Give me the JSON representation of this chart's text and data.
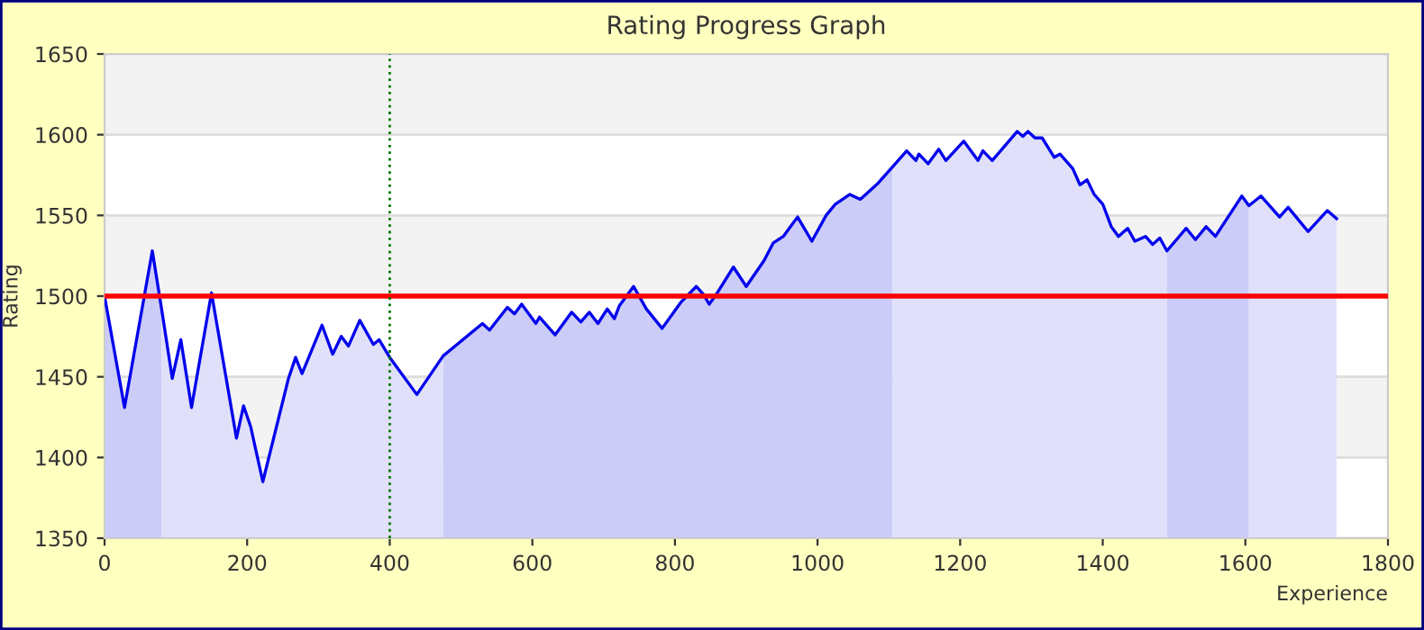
{
  "chart_data": {
    "type": "line",
    "title": "Rating Progress Graph",
    "xlabel": "Experience",
    "ylabel": "Rating",
    "xlim": [
      0,
      1800
    ],
    "xticks": [
      0,
      200,
      400,
      600,
      800,
      1000,
      1200,
      1400,
      1600,
      1800
    ],
    "ylim": [
      1350,
      1650
    ],
    "yticks": [
      1350,
      1400,
      1450,
      1500,
      1550,
      1600,
      1650
    ],
    "grid": "y",
    "legend": false,
    "marker": "none",
    "line_style": "solid",
    "ref_lines": [
      {
        "axis": "y",
        "value": 1500,
        "color": "#ff0000",
        "line_style": "solid"
      },
      {
        "axis": "x",
        "value": 400,
        "color": "#007700",
        "line_style": "dotted"
      }
    ],
    "series": [
      {
        "color": "#0000ee",
        "x": [
          0,
          28,
          67,
          80,
          95,
          107,
          122,
          150,
          185,
          195,
          205,
          222,
          258,
          268,
          277,
          305,
          320,
          332,
          342,
          358,
          377,
          385,
          400,
          438,
          475,
          530,
          540,
          565,
          575,
          585,
          605,
          610,
          632,
          655,
          668,
          680,
          692,
          705,
          715,
          722,
          742,
          760,
          782,
          808,
          830,
          840,
          848,
          858,
          882,
          900,
          925,
          938,
          952,
          972,
          992,
          1012,
          1025,
          1045,
          1060,
          1085,
          1105,
          1125,
          1138,
          1142,
          1155,
          1170,
          1180,
          1205,
          1225,
          1232,
          1245,
          1280,
          1288,
          1295,
          1305,
          1315,
          1332,
          1340,
          1358,
          1368,
          1378,
          1388,
          1400,
          1412,
          1422,
          1435,
          1445,
          1460,
          1470,
          1480,
          1490,
          1517,
          1530,
          1545,
          1558,
          1595,
          1605,
          1622,
          1648,
          1660,
          1688,
          1715,
          1728
        ],
        "values": [
          1500,
          1431,
          1528,
          1492,
          1449,
          1473,
          1431,
          1502,
          1412,
          1432,
          1419,
          1385,
          1449,
          1462,
          1452,
          1482,
          1464,
          1475,
          1469,
          1485,
          1470,
          1473,
          1462,
          1439,
          1463,
          1483,
          1479,
          1493,
          1489,
          1495,
          1483,
          1487,
          1476,
          1490,
          1484,
          1490,
          1483,
          1492,
          1486,
          1494,
          1506,
          1492,
          1480,
          1496,
          1506,
          1501,
          1495,
          1501,
          1518,
          1506,
          1522,
          1533,
          1537,
          1549,
          1534,
          1550,
          1557,
          1563,
          1560,
          1570,
          1580,
          1590,
          1584,
          1588,
          1582,
          1591,
          1584,
          1596,
          1584,
          1590,
          1584,
          1602,
          1599,
          1602,
          1598,
          1598,
          1586,
          1588,
          1579,
          1569,
          1572,
          1563,
          1557,
          1543,
          1537,
          1542,
          1534,
          1537,
          1532,
          1536,
          1528,
          1542,
          1535,
          1543,
          1537,
          1562,
          1556,
          1562,
          1549,
          1555,
          1540,
          1553,
          1548
        ]
      },
      {
        "type": "area",
        "color": "#ccccf8",
        "x": [
          0,
          28,
          67,
          80
        ],
        "values": [
          1500,
          1431,
          1528,
          1492
        ]
      },
      {
        "type": "area",
        "color": "#e0e0fa",
        "x": [
          80,
          95,
          107,
          122,
          150,
          185,
          195,
          205,
          222,
          258,
          268,
          277,
          305,
          320,
          332,
          342,
          358,
          377,
          385,
          400,
          438,
          475
        ],
        "values": [
          1492,
          1449,
          1473,
          1431,
          1502,
          1412,
          1432,
          1419,
          1385,
          1449,
          1462,
          1452,
          1482,
          1464,
          1475,
          1469,
          1485,
          1470,
          1473,
          1462,
          1439,
          1463
        ]
      },
      {
        "type": "area",
        "color": "#ccccf8",
        "x": [
          475,
          530,
          540,
          565,
          575,
          585,
          605,
          610,
          632,
          655,
          668,
          680,
          692,
          705,
          715,
          722,
          742,
          760,
          782,
          808,
          830,
          840,
          848,
          858,
          882,
          900,
          925,
          938,
          952,
          972,
          992,
          1012,
          1025,
          1045,
          1060,
          1085,
          1105
        ],
        "values": [
          1463,
          1483,
          1479,
          1493,
          1489,
          1495,
          1483,
          1487,
          1476,
          1490,
          1484,
          1490,
          1483,
          1492,
          1486,
          1494,
          1506,
          1492,
          1480,
          1496,
          1506,
          1501,
          1495,
          1501,
          1518,
          1506,
          1522,
          1533,
          1537,
          1549,
          1534,
          1550,
          1557,
          1563,
          1560,
          1570,
          1580
        ]
      },
      {
        "type": "area",
        "color": "#e0e0fa",
        "x": [
          1105,
          1125,
          1138,
          1142,
          1155,
          1170,
          1180,
          1205,
          1225,
          1232,
          1245,
          1280,
          1288,
          1295,
          1305,
          1315,
          1332,
          1340,
          1358,
          1368,
          1378,
          1388,
          1400,
          1412,
          1422,
          1435,
          1445,
          1460,
          1470,
          1480,
          1490
        ],
        "values": [
          1580,
          1590,
          1584,
          1588,
          1582,
          1591,
          1584,
          1596,
          1584,
          1590,
          1584,
          1602,
          1599,
          1602,
          1598,
          1598,
          1586,
          1588,
          1579,
          1569,
          1572,
          1563,
          1557,
          1543,
          1537,
          1542,
          1534,
          1537,
          1532,
          1536,
          1528
        ]
      },
      {
        "type": "area",
        "color": "#ccccf8",
        "x": [
          1490,
          1517,
          1530,
          1545,
          1558,
          1595,
          1605
        ],
        "values": [
          1528,
          1542,
          1535,
          1543,
          1537,
          1562,
          1556
        ]
      },
      {
        "type": "area",
        "color": "#e0e0fa",
        "x": [
          1605,
          1622,
          1648,
          1660,
          1688,
          1715,
          1728
        ],
        "values": [
          1556,
          1562,
          1549,
          1555,
          1540,
          1553,
          1548
        ]
      }
    ]
  }
}
